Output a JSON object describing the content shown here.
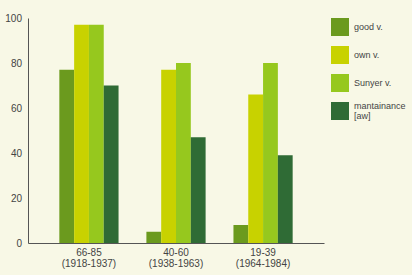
{
  "chart_data": {
    "type": "bar",
    "categories": [
      "66-85\n(1918-1937)",
      "40-60\n(1938-1963)",
      "19-39\n(1964-1984)"
    ],
    "series": [
      {
        "name": "good v.",
        "color": "#6b9a1e",
        "values": [
          77,
          5,
          8
        ]
      },
      {
        "name": "own v.",
        "color": "#c8d200",
        "values": [
          97,
          77,
          66
        ]
      },
      {
        "name": "Sunyer v.",
        "color": "#96c81e",
        "values": [
          97,
          80,
          80
        ]
      },
      {
        "name": "mantainance\n[aw]",
        "color": "#2f6b35",
        "values": [
          70,
          47,
          39
        ]
      }
    ],
    "ylim": [
      0,
      100
    ],
    "yticks": [
      0,
      20,
      40,
      60,
      80,
      100
    ],
    "grid": false,
    "legend": "right"
  }
}
